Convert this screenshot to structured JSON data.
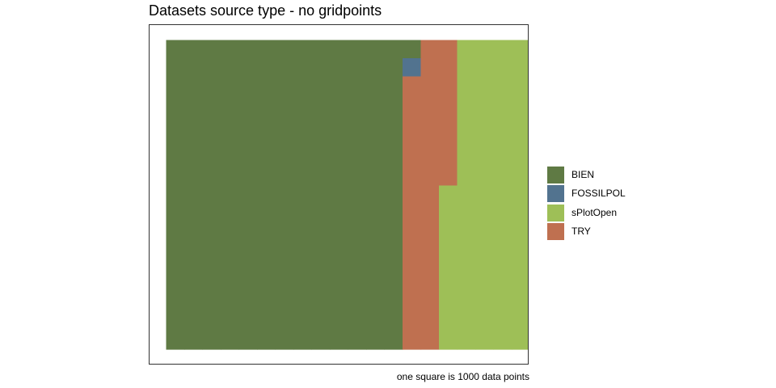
{
  "chart_data": {
    "type": "waffle",
    "title": "Datasets source type - no gridpoints",
    "caption": "one square is 1000 data points",
    "grid_rows": 17,
    "fill_order": "column-wise, top to bottom",
    "unit": 1000,
    "series": [
      {
        "name": "BIEN",
        "color": "#5f7a44",
        "squares": 222
      },
      {
        "name": "FOSSILPOL",
        "color": "#52738f",
        "squares": 1
      },
      {
        "name": "TRY",
        "color": "#bf7050",
        "squares": 40
      },
      {
        "name": "sPlotOpen",
        "color": "#9ebf57",
        "squares": 83
      }
    ],
    "legend": {
      "position": "right",
      "items": [
        {
          "label": "BIEN",
          "color": "#5f7a44"
        },
        {
          "label": "FOSSILPOL",
          "color": "#52738f"
        },
        {
          "label": "sPlotOpen",
          "color": "#9ebf57"
        },
        {
          "label": "TRY",
          "color": "#bf7050"
        }
      ]
    }
  }
}
